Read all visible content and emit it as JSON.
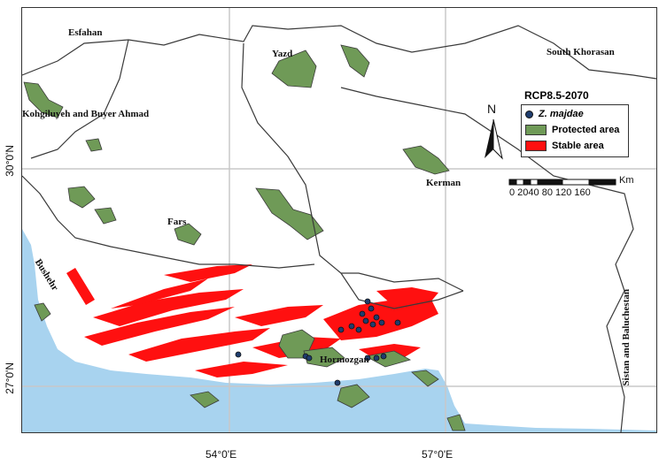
{
  "map": {
    "scenario_title": "RCP8.5-2070",
    "colors": {
      "land": "#ffffff",
      "sea": "#a8d3ef",
      "protected": "#6f9a57",
      "stable": "#ff1010",
      "occurrence": "#1f3d6e",
      "border": "#3a3a3a",
      "graticule": "#c8c8c8"
    },
    "provinces": [
      "Esfahan",
      "Yazd",
      "South Khorasan",
      "Kohgiluyeh and Buyer Ahmad",
      "Fars",
      "Kerman",
      "Bushehr",
      "Hormozgan",
      "Sistan and Baluchestan"
    ],
    "legend": [
      {
        "symbol": "dot",
        "label": "Z. majdae"
      },
      {
        "symbol": "box",
        "label": "Protected area"
      },
      {
        "symbol": "box",
        "label": "Stable area"
      }
    ],
    "north_arrow": "N",
    "scale_bar": {
      "ticks": "0 2040    80    120   160",
      "unit": "Km"
    },
    "graticule_labels": {
      "lon": [
        "54°0'E",
        "57°0'E"
      ],
      "lat": [
        "30°0'N",
        "27°0'N"
      ]
    }
  }
}
